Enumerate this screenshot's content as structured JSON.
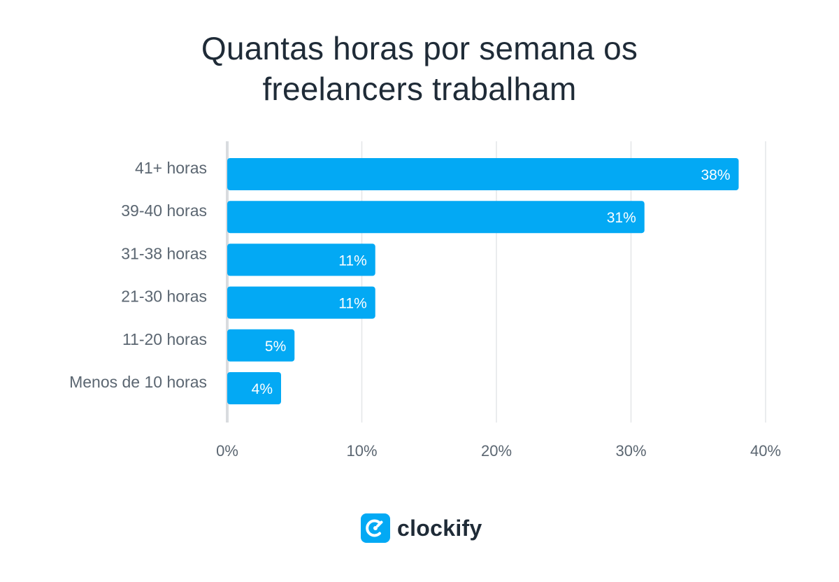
{
  "chart_data": {
    "type": "bar",
    "orientation": "horizontal",
    "title_lines": [
      "Quantas horas por semana os",
      "freelancers trabalham"
    ],
    "categories": [
      "41+ horas",
      "39-40 horas",
      "31-38 horas",
      "21-30 horas",
      "11-20 horas",
      "Menos de 10 horas"
    ],
    "values": [
      38,
      31,
      11,
      11,
      5,
      4
    ],
    "data_labels": [
      "38%",
      "31%",
      "11%",
      "11%",
      "5%",
      "4%"
    ],
    "xticks": [
      0,
      10,
      20,
      30,
      40
    ],
    "xtick_labels": [
      "0%",
      "10%",
      "20%",
      "30%",
      "40%"
    ],
    "xlim": [
      0,
      40
    ],
    "xlabel": "",
    "ylabel": "",
    "grid": true,
    "legend": "none",
    "colors": {
      "bar": "#03a9f4",
      "grid": "#e4e6e8",
      "axis": "#d9dcdf"
    }
  },
  "logo": {
    "text": "clockify",
    "icon": "clockify-logo-icon"
  }
}
